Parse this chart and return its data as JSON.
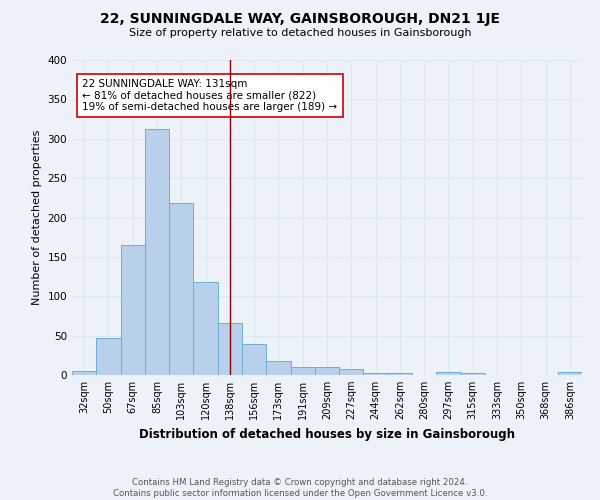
{
  "title": "22, SUNNINGDALE WAY, GAINSBOROUGH, DN21 1JE",
  "subtitle": "Size of property relative to detached houses in Gainsborough",
  "xlabel": "Distribution of detached houses by size in Gainsborough",
  "ylabel": "Number of detached properties",
  "bar_labels": [
    "32sqm",
    "50sqm",
    "67sqm",
    "85sqm",
    "103sqm",
    "120sqm",
    "138sqm",
    "156sqm",
    "173sqm",
    "191sqm",
    "209sqm",
    "227sqm",
    "244sqm",
    "262sqm",
    "280sqm",
    "297sqm",
    "315sqm",
    "333sqm",
    "350sqm",
    "368sqm",
    "386sqm"
  ],
  "bar_values": [
    5,
    47,
    165,
    312,
    218,
    118,
    66,
    39,
    18,
    10,
    10,
    7,
    3,
    3,
    0,
    4,
    2,
    0,
    0,
    0,
    4
  ],
  "bar_color": "#b8d0ea",
  "bar_edge_color": "#6aaed6",
  "vline_x": 6.0,
  "vline_color": "#8b0000",
  "annotation_text": "22 SUNNINGDALE WAY: 131sqm\n← 81% of detached houses are smaller (822)\n19% of semi-detached houses are larger (189) →",
  "annotation_box_color": "#ffffff",
  "annotation_box_edge": "#cc0000",
  "ylim": [
    0,
    400
  ],
  "yticks": [
    0,
    50,
    100,
    150,
    200,
    250,
    300,
    350,
    400
  ],
  "grid_color": "#dce8f0",
  "background_color": "#edf2f8",
  "footer_line1": "Contains HM Land Registry data © Crown copyright and database right 2024.",
  "footer_line2": "Contains public sector information licensed under the Open Government Licence v3.0."
}
